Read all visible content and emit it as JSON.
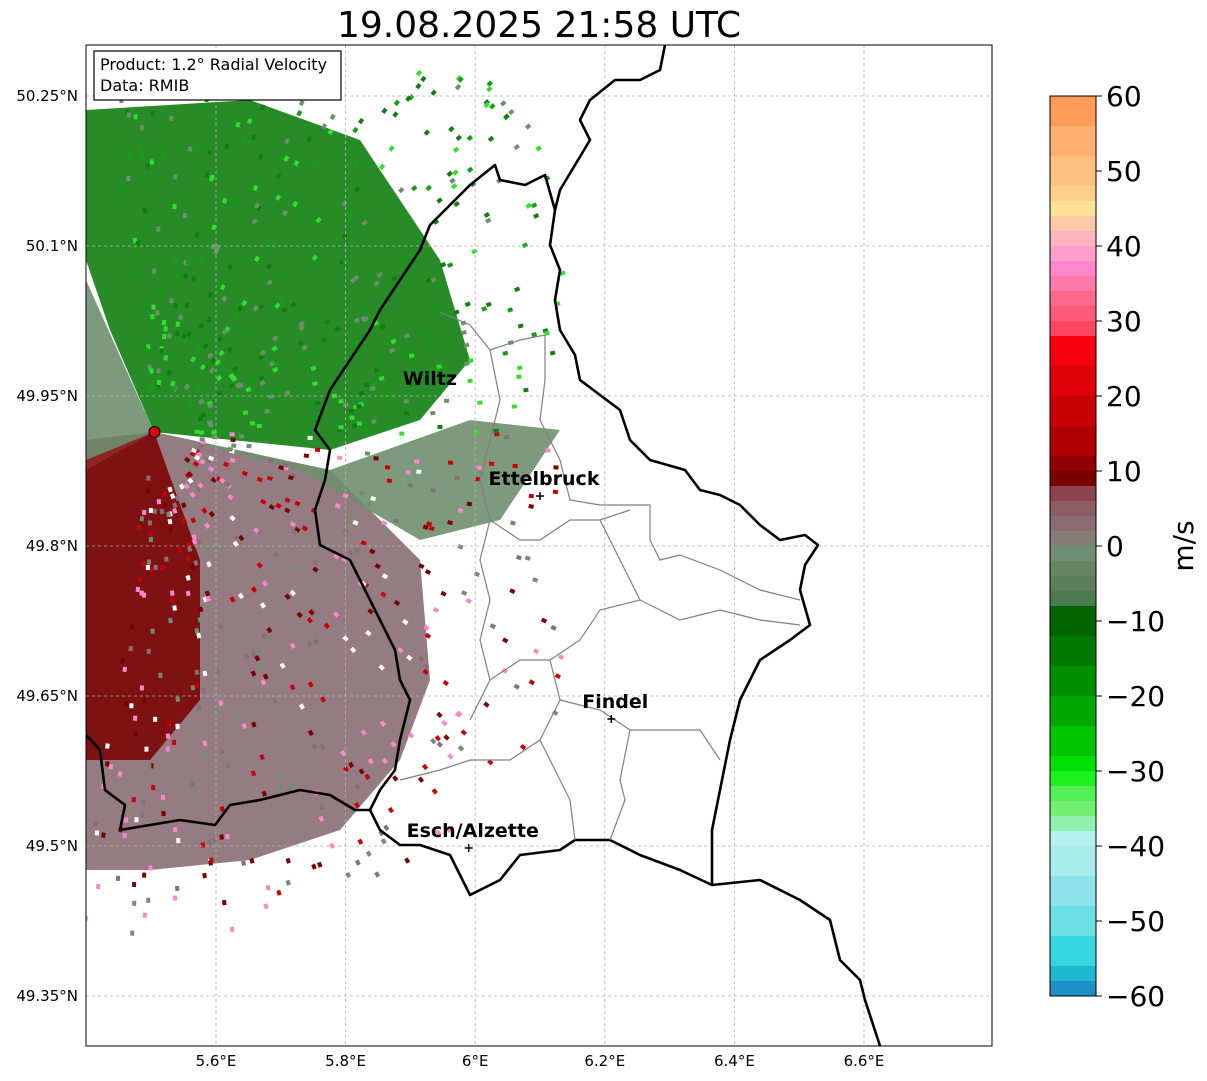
{
  "title": "19.08.2025 21:58 UTC",
  "info_box": {
    "product_line": "Product: 1.2° Radial Velocity",
    "data_line": "Data: RMIB"
  },
  "map": {
    "lon_range": [
      5.42,
      6.81
    ],
    "lat_range": [
      49.3,
      50.3
    ],
    "x_ticks": [
      "5.6°E",
      "5.8°E",
      "6°E",
      "6.2°E",
      "6.4°E",
      "6.6°E"
    ],
    "y_ticks": [
      "50.25°N",
      "50.1°N",
      "49.95°N",
      "49.8°N",
      "49.65°N",
      "49.5°N",
      "49.35°N"
    ],
    "gridlines": true,
    "radar_site": {
      "lon": 5.505,
      "lat": 49.914
    },
    "cities": [
      {
        "name": "Wiltz",
        "lon": 5.93,
        "lat": 49.965,
        "marker": false
      },
      {
        "name": "Ettelbruck",
        "lon": 6.1,
        "lat": 49.85,
        "marker": true
      },
      {
        "name": "Findel",
        "lon": 6.21,
        "lat": 49.627,
        "marker": true
      },
      {
        "name": "Esch/Alzette",
        "lon": 5.99,
        "lat": 49.498,
        "marker": true
      }
    ]
  },
  "colorbar": {
    "label": "m/s",
    "ticks": [
      "60",
      "50",
      "40",
      "30",
      "20",
      "10",
      "0",
      "−10",
      "−20",
      "−30",
      "−40",
      "−50",
      "−60"
    ],
    "range": [
      -60,
      60
    ]
  }
}
